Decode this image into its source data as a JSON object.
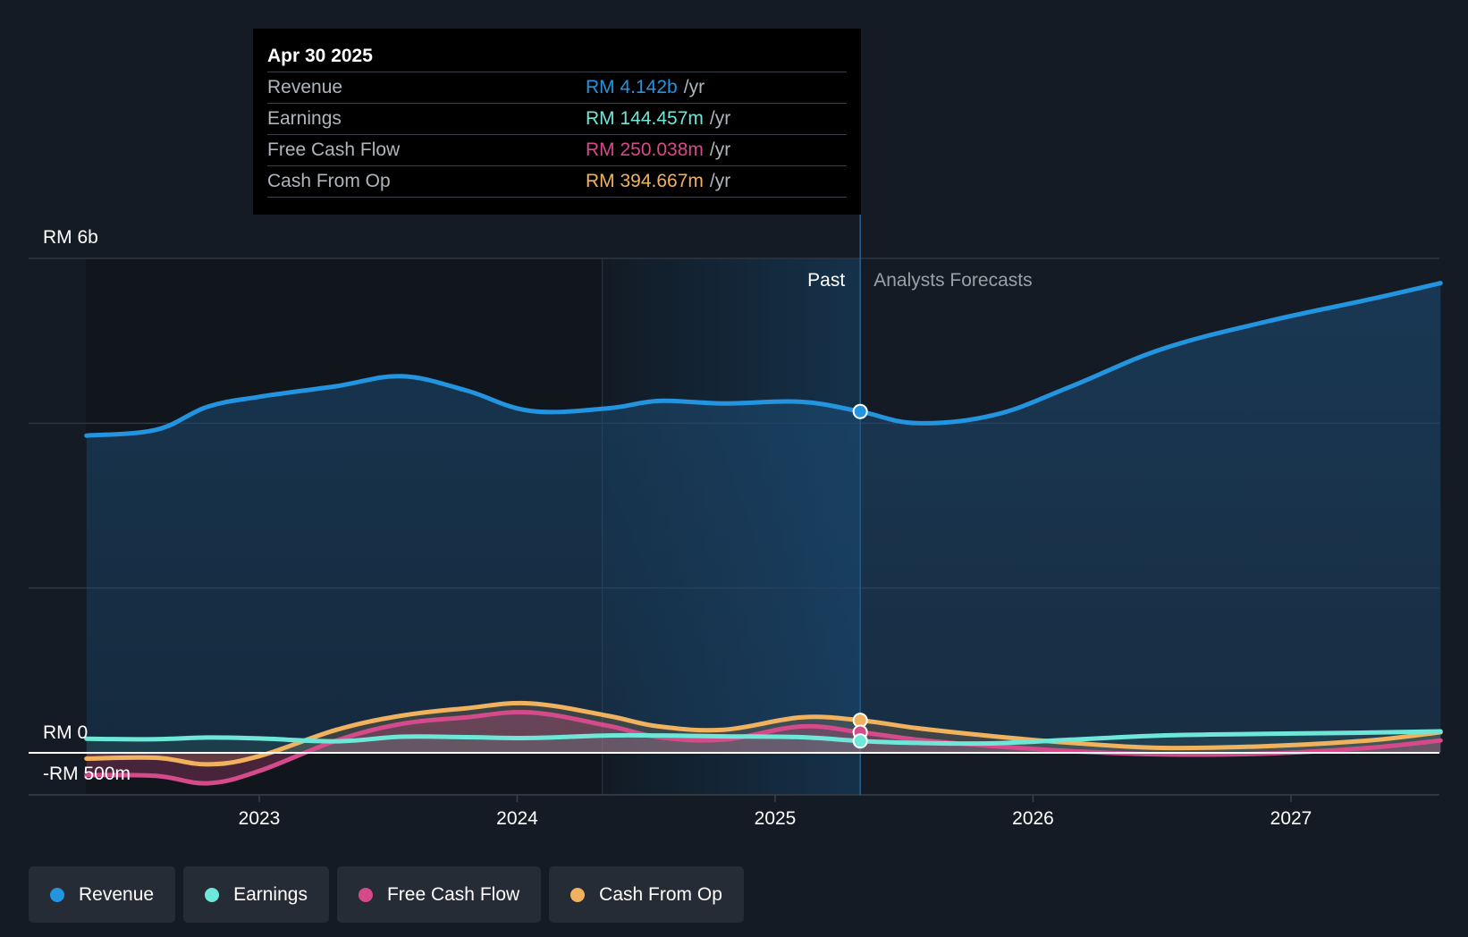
{
  "tooltip": {
    "date": "Apr 30 2025",
    "rows": [
      {
        "label": "Revenue",
        "value": "RM 4.142b",
        "unit": "/yr",
        "color": "#2394df"
      },
      {
        "label": "Earnings",
        "value": "RM 144.457m",
        "unit": "/yr",
        "color": "#6ee7d8"
      },
      {
        "label": "Free Cash Flow",
        "value": "RM 250.038m",
        "unit": "/yr",
        "color": "#d54a8a"
      },
      {
        "label": "Cash From Op",
        "value": "RM 394.667m",
        "unit": "/yr",
        "color": "#f1b25f"
      }
    ]
  },
  "legend": {
    "items": [
      {
        "label": "Revenue",
        "color": "#2394df"
      },
      {
        "label": "Earnings",
        "color": "#6ee7d8"
      },
      {
        "label": "Free Cash Flow",
        "color": "#d54a8a"
      },
      {
        "label": "Cash From Op",
        "color": "#f1b25f"
      }
    ]
  },
  "chart_data": {
    "type": "line",
    "title": "",
    "xlabel": "",
    "ylabel": "",
    "ylim": [
      -500,
      6000
    ],
    "xlim": [
      2022.33,
      2027.58
    ],
    "x_ticks": [
      {
        "value": 2023,
        "label": "2023"
      },
      {
        "value": 2024,
        "label": "2024"
      },
      {
        "value": 2025,
        "label": "2025"
      },
      {
        "value": 2026,
        "label": "2026"
      },
      {
        "value": 2027,
        "label": "2027"
      }
    ],
    "y_labels": [
      {
        "value": 6000,
        "label": "RM 6b"
      },
      {
        "value": 0,
        "label": "RM 0"
      },
      {
        "value": -500,
        "label": "-RM 500m"
      }
    ],
    "y_gridlines": [
      6000,
      4000,
      2000,
      0
    ],
    "past_label": "Past",
    "forecast_label": "Analysts Forecasts",
    "past_region_start": 2024.33,
    "divider_x": 2025.33,
    "units": "RM millions",
    "series": [
      {
        "name": "Revenue",
        "color": "#2394df",
        "x": [
          2022.33,
          2022.6,
          2022.8,
          2023.0,
          2023.3,
          2023.55,
          2023.8,
          2024.05,
          2024.35,
          2024.55,
          2024.8,
          2025.1,
          2025.33,
          2025.55,
          2025.85,
          2026.15,
          2026.5,
          2026.9,
          2027.3,
          2027.58
        ],
        "values": [
          3850,
          3920,
          4200,
          4320,
          4450,
          4570,
          4400,
          4150,
          4180,
          4270,
          4240,
          4260,
          4142,
          4000,
          4100,
          4450,
          4900,
          5230,
          5500,
          5700
        ]
      },
      {
        "name": "Earnings",
        "color": "#6ee7d8",
        "x": [
          2022.33,
          2022.6,
          2022.8,
          2023.0,
          2023.3,
          2023.55,
          2023.8,
          2024.05,
          2024.35,
          2024.55,
          2024.8,
          2025.1,
          2025.33,
          2025.55,
          2025.85,
          2026.15,
          2026.5,
          2026.9,
          2027.3,
          2027.58
        ],
        "values": [
          170,
          165,
          185,
          175,
          140,
          195,
          190,
          180,
          210,
          210,
          200,
          190,
          144,
          120,
          115,
          160,
          210,
          230,
          245,
          260
        ]
      },
      {
        "name": "Free Cash Flow",
        "color": "#d54a8a",
        "x": [
          2022.33,
          2022.6,
          2022.8,
          2023.0,
          2023.3,
          2023.55,
          2023.8,
          2024.05,
          2024.35,
          2024.55,
          2024.8,
          2025.1,
          2025.33,
          2025.55,
          2025.85,
          2026.15,
          2026.5,
          2026.9,
          2027.3,
          2027.58
        ],
        "values": [
          -270,
          -280,
          -370,
          -220,
          150,
          350,
          430,
          490,
          330,
          190,
          160,
          320,
          250,
          160,
          80,
          20,
          -20,
          -10,
          60,
          150
        ]
      },
      {
        "name": "Cash From Op",
        "color": "#f1b25f",
        "x": [
          2022.33,
          2022.6,
          2022.8,
          2023.0,
          2023.3,
          2023.55,
          2023.8,
          2024.05,
          2024.35,
          2024.55,
          2024.8,
          2025.1,
          2025.33,
          2025.55,
          2025.85,
          2026.15,
          2026.5,
          2026.9,
          2027.3,
          2027.58
        ],
        "values": [
          -70,
          -60,
          -140,
          -40,
          280,
          450,
          540,
          600,
          450,
          320,
          280,
          430,
          395,
          300,
          200,
          120,
          60,
          80,
          150,
          250
        ]
      }
    ]
  }
}
